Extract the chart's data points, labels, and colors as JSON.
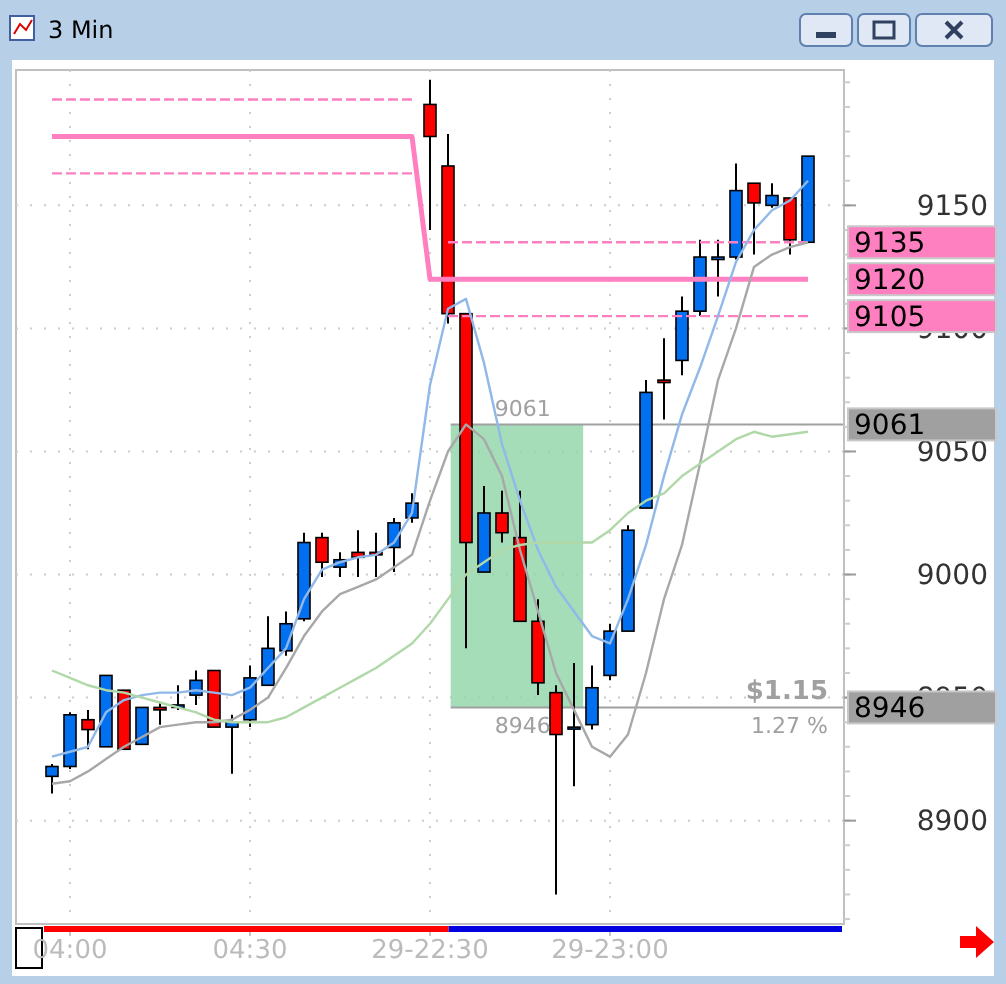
{
  "chart_data": {
    "type": "candlestick",
    "title": "3 Min",
    "categories": [
      null,
      "04:00",
      null,
      null,
      null,
      null,
      null,
      null,
      null,
      null,
      null,
      "04:30",
      null,
      null,
      null,
      null,
      null,
      null,
      null,
      null,
      null,
      "29-22:30",
      null,
      null,
      null,
      null,
      null,
      null,
      null,
      null,
      null,
      "29-23:00",
      null,
      null,
      null,
      null,
      null,
      null,
      null,
      null,
      null,
      null,
      null
    ],
    "ohlc": [
      [
        8918,
        8923,
        8911,
        8922
      ],
      [
        8922,
        8944,
        8921,
        8943
      ],
      [
        8941,
        8945,
        8929,
        8937
      ],
      [
        8930,
        8959,
        8930,
        8959
      ],
      [
        8953,
        8953,
        8929,
        8929
      ],
      [
        8931,
        8946,
        8931,
        8946
      ],
      [
        8946,
        8948,
        8939,
        8945
      ],
      [
        8946,
        8955,
        8945,
        8947
      ],
      [
        8951,
        8961,
        8947,
        8957
      ],
      [
        8961,
        8961,
        8938,
        8938
      ],
      [
        8938,
        8943,
        8919,
        8940
      ],
      [
        8941,
        8963,
        8938,
        8958
      ],
      [
        8955,
        8983,
        8955,
        8970
      ],
      [
        8969,
        8985,
        8967,
        8980
      ],
      [
        8982,
        9017,
        8981,
        9013
      ],
      [
        9015,
        9017,
        8999,
        9005
      ],
      [
        9003,
        9009,
        8999,
        9006
      ],
      [
        9009,
        9018,
        8999,
        9007
      ],
      [
        9009,
        9017,
        8999,
        9008
      ],
      [
        9011,
        9023,
        9001,
        9021
      ],
      [
        9023,
        9033,
        9021,
        9029
      ],
      [
        9191,
        9201,
        9140,
        9178
      ],
      [
        9166,
        9179,
        9102,
        9106
      ],
      [
        9106,
        9106,
        8970,
        9013
      ],
      [
        9001,
        9036,
        9001,
        9025
      ],
      [
        9025,
        9034,
        9013,
        9017
      ],
      [
        9015,
        9034,
        8981,
        8981
      ],
      [
        8981,
        8990,
        8951,
        8956
      ],
      [
        8952,
        8955,
        8870,
        8935
      ],
      [
        8938,
        8964,
        8914,
        8938
      ],
      [
        8939,
        8963,
        8937,
        8954
      ],
      [
        8959,
        8980,
        8957,
        8977
      ],
      [
        8977,
        9020,
        8977,
        9018
      ],
      [
        9027,
        9079,
        9027,
        9074
      ],
      [
        9079,
        9096,
        9063,
        9078
      ],
      [
        9087,
        9113,
        9081,
        9107
      ],
      [
        9107,
        9136,
        9105,
        9129
      ],
      [
        9128,
        9136,
        9113,
        9129
      ],
      [
        9129,
        9167,
        9128,
        9156
      ],
      [
        9159,
        9159,
        9130,
        9151
      ],
      [
        9150,
        9159,
        9149,
        9154
      ],
      [
        9153,
        9153,
        9130,
        9136
      ],
      [
        9135,
        9170,
        9135,
        9170
      ]
    ],
    "series": [
      {
        "type": "line",
        "color": "#ff80c0",
        "line_style": "dashed",
        "values": [
          9193,
          9193,
          9193,
          9193,
          9193,
          9193,
          9193,
          9193,
          9193,
          9193,
          9193,
          9193,
          9193,
          9193,
          9193,
          9193,
          9193,
          9193,
          9193,
          9193,
          9193,
          null,
          9135,
          9135,
          9135,
          9135,
          9135,
          9135,
          9135,
          9135,
          9135,
          9135,
          9135,
          9135,
          9135,
          9135,
          9135,
          9135,
          9135,
          9135,
          9135,
          9135,
          9135
        ],
        "value_labels": [
          null,
          null,
          null,
          null,
          null,
          null,
          null,
          null,
          null,
          null,
          null,
          null,
          null,
          null,
          null,
          null,
          null,
          null,
          null,
          null,
          null,
          null,
          null,
          null,
          null,
          null,
          null,
          null,
          null,
          null,
          null,
          null,
          null,
          null,
          null,
          null,
          null,
          null,
          null,
          null,
          null,
          null,
          "9135"
        ]
      },
      {
        "type": "line",
        "color": "#ff80c0",
        "line_style": "solid",
        "values": [
          9178,
          9178,
          9178,
          9178,
          9178,
          9178,
          9178,
          9178,
          9178,
          9178,
          9178,
          9178,
          9178,
          9178,
          9178,
          9178,
          9178,
          9178,
          9178,
          9178,
          9178,
          9120,
          9120,
          9120,
          9120,
          9120,
          9120,
          9120,
          9120,
          9120,
          9120,
          9120,
          9120,
          9120,
          9120,
          9120,
          9120,
          9120,
          9120,
          9120,
          9120,
          9120,
          9120
        ],
        "value_labels": [
          null,
          null,
          null,
          null,
          null,
          null,
          null,
          null,
          null,
          null,
          null,
          null,
          null,
          null,
          null,
          null,
          null,
          null,
          null,
          null,
          null,
          null,
          null,
          null,
          null,
          null,
          null,
          null,
          null,
          null,
          null,
          null,
          null,
          null,
          null,
          null,
          null,
          null,
          null,
          null,
          null,
          null,
          "9120"
        ]
      },
      {
        "type": "line",
        "color": "#ff80c0",
        "line_style": "dashed",
        "values": [
          9163,
          9163,
          9163,
          9163,
          9163,
          9163,
          9163,
          9163,
          9163,
          9163,
          9163,
          9163,
          9163,
          9163,
          9163,
          9163,
          9163,
          9163,
          9163,
          9163,
          9163,
          null,
          9105,
          9105,
          9105,
          9105,
          9105,
          9105,
          9105,
          9105,
          9105,
          9105,
          9105,
          9105,
          9105,
          9105,
          9105,
          9105,
          9105,
          9105,
          9105,
          9105,
          9105
        ],
        "value_labels": [
          null,
          null,
          null,
          null,
          null,
          null,
          null,
          null,
          null,
          null,
          null,
          null,
          null,
          null,
          null,
          null,
          null,
          null,
          null,
          null,
          null,
          null,
          null,
          null,
          null,
          null,
          null,
          null,
          null,
          null,
          null,
          null,
          null,
          null,
          null,
          null,
          null,
          null,
          null,
          null,
          null,
          null,
          "9105"
        ]
      },
      {
        "type": "line",
        "color": "#90b8e8",
        "line_style": "solid",
        "values": [
          8926,
          8928,
          8930,
          8944,
          8949,
          8951,
          8952,
          8952,
          8953,
          8952,
          8951,
          8954,
          8962,
          8970,
          8990,
          9002,
          9005,
          9007,
          9008,
          9013,
          9025,
          9077,
          9108,
          9112,
          9086,
          9053,
          9030,
          9010,
          8995,
          8985,
          8975,
          8972,
          8990,
          9012,
          9040,
          9065,
          9084,
          9105,
          9127,
          9140,
          9148,
          9152,
          9160
        ]
      },
      {
        "type": "line",
        "color": "#a8a8a8",
        "line_style": "solid",
        "values": [
          8915,
          8916,
          8920,
          8925,
          8930,
          8934,
          8938,
          8939,
          8940,
          8940,
          8941,
          8945,
          8950,
          8962,
          8975,
          8985,
          8992,
          8995,
          8998,
          9003,
          9008,
          9030,
          9050,
          9061,
          9055,
          9040,
          9010,
          8985,
          8960,
          8945,
          8930,
          8926,
          8935,
          8960,
          8990,
          9012,
          9045,
          9079,
          9100,
          9125,
          9130,
          9133,
          9135
        ]
      },
      {
        "type": "line",
        "color": "#b0d8a8",
        "line_style": "solid",
        "values": [
          8961,
          8958,
          8955,
          8953,
          8952,
          8950,
          8948,
          8946,
          8944,
          8941,
          8940,
          8940,
          8940,
          8942,
          8946,
          8950,
          8954,
          8958,
          8962,
          8967,
          8972,
          8980,
          8990,
          9000,
          9005,
          9010,
          9012,
          9013,
          9013,
          9013,
          9013,
          9018,
          9025,
          9030,
          9033,
          9040,
          9045,
          9050,
          9055,
          9058,
          9056,
          9057,
          9058
        ]
      }
    ],
    "ylim": [
      8858,
      9205
    ],
    "yticks": [
      8900,
      8950,
      9000,
      9050,
      9100,
      9150
    ],
    "grid": true,
    "ref_lines": [
      {
        "axis": "y",
        "value": 9061,
        "label": "9061",
        "color": "#a0a0a0"
      },
      {
        "axis": "y",
        "value": 8946,
        "label": "8946",
        "color": "#a0a0a0"
      }
    ],
    "bands": [
      {
        "axis": "y",
        "from": 8946,
        "to": 9061,
        "color": "#8fd4a8"
      }
    ],
    "annotations": [
      {
        "text": "9061",
        "y": 9061
      },
      {
        "text": "8946",
        "y": 8946
      },
      {
        "text": "$1.15",
        "y": 8946
      },
      {
        "text": "1.27 %",
        "y": 8946
      }
    ]
  }
}
